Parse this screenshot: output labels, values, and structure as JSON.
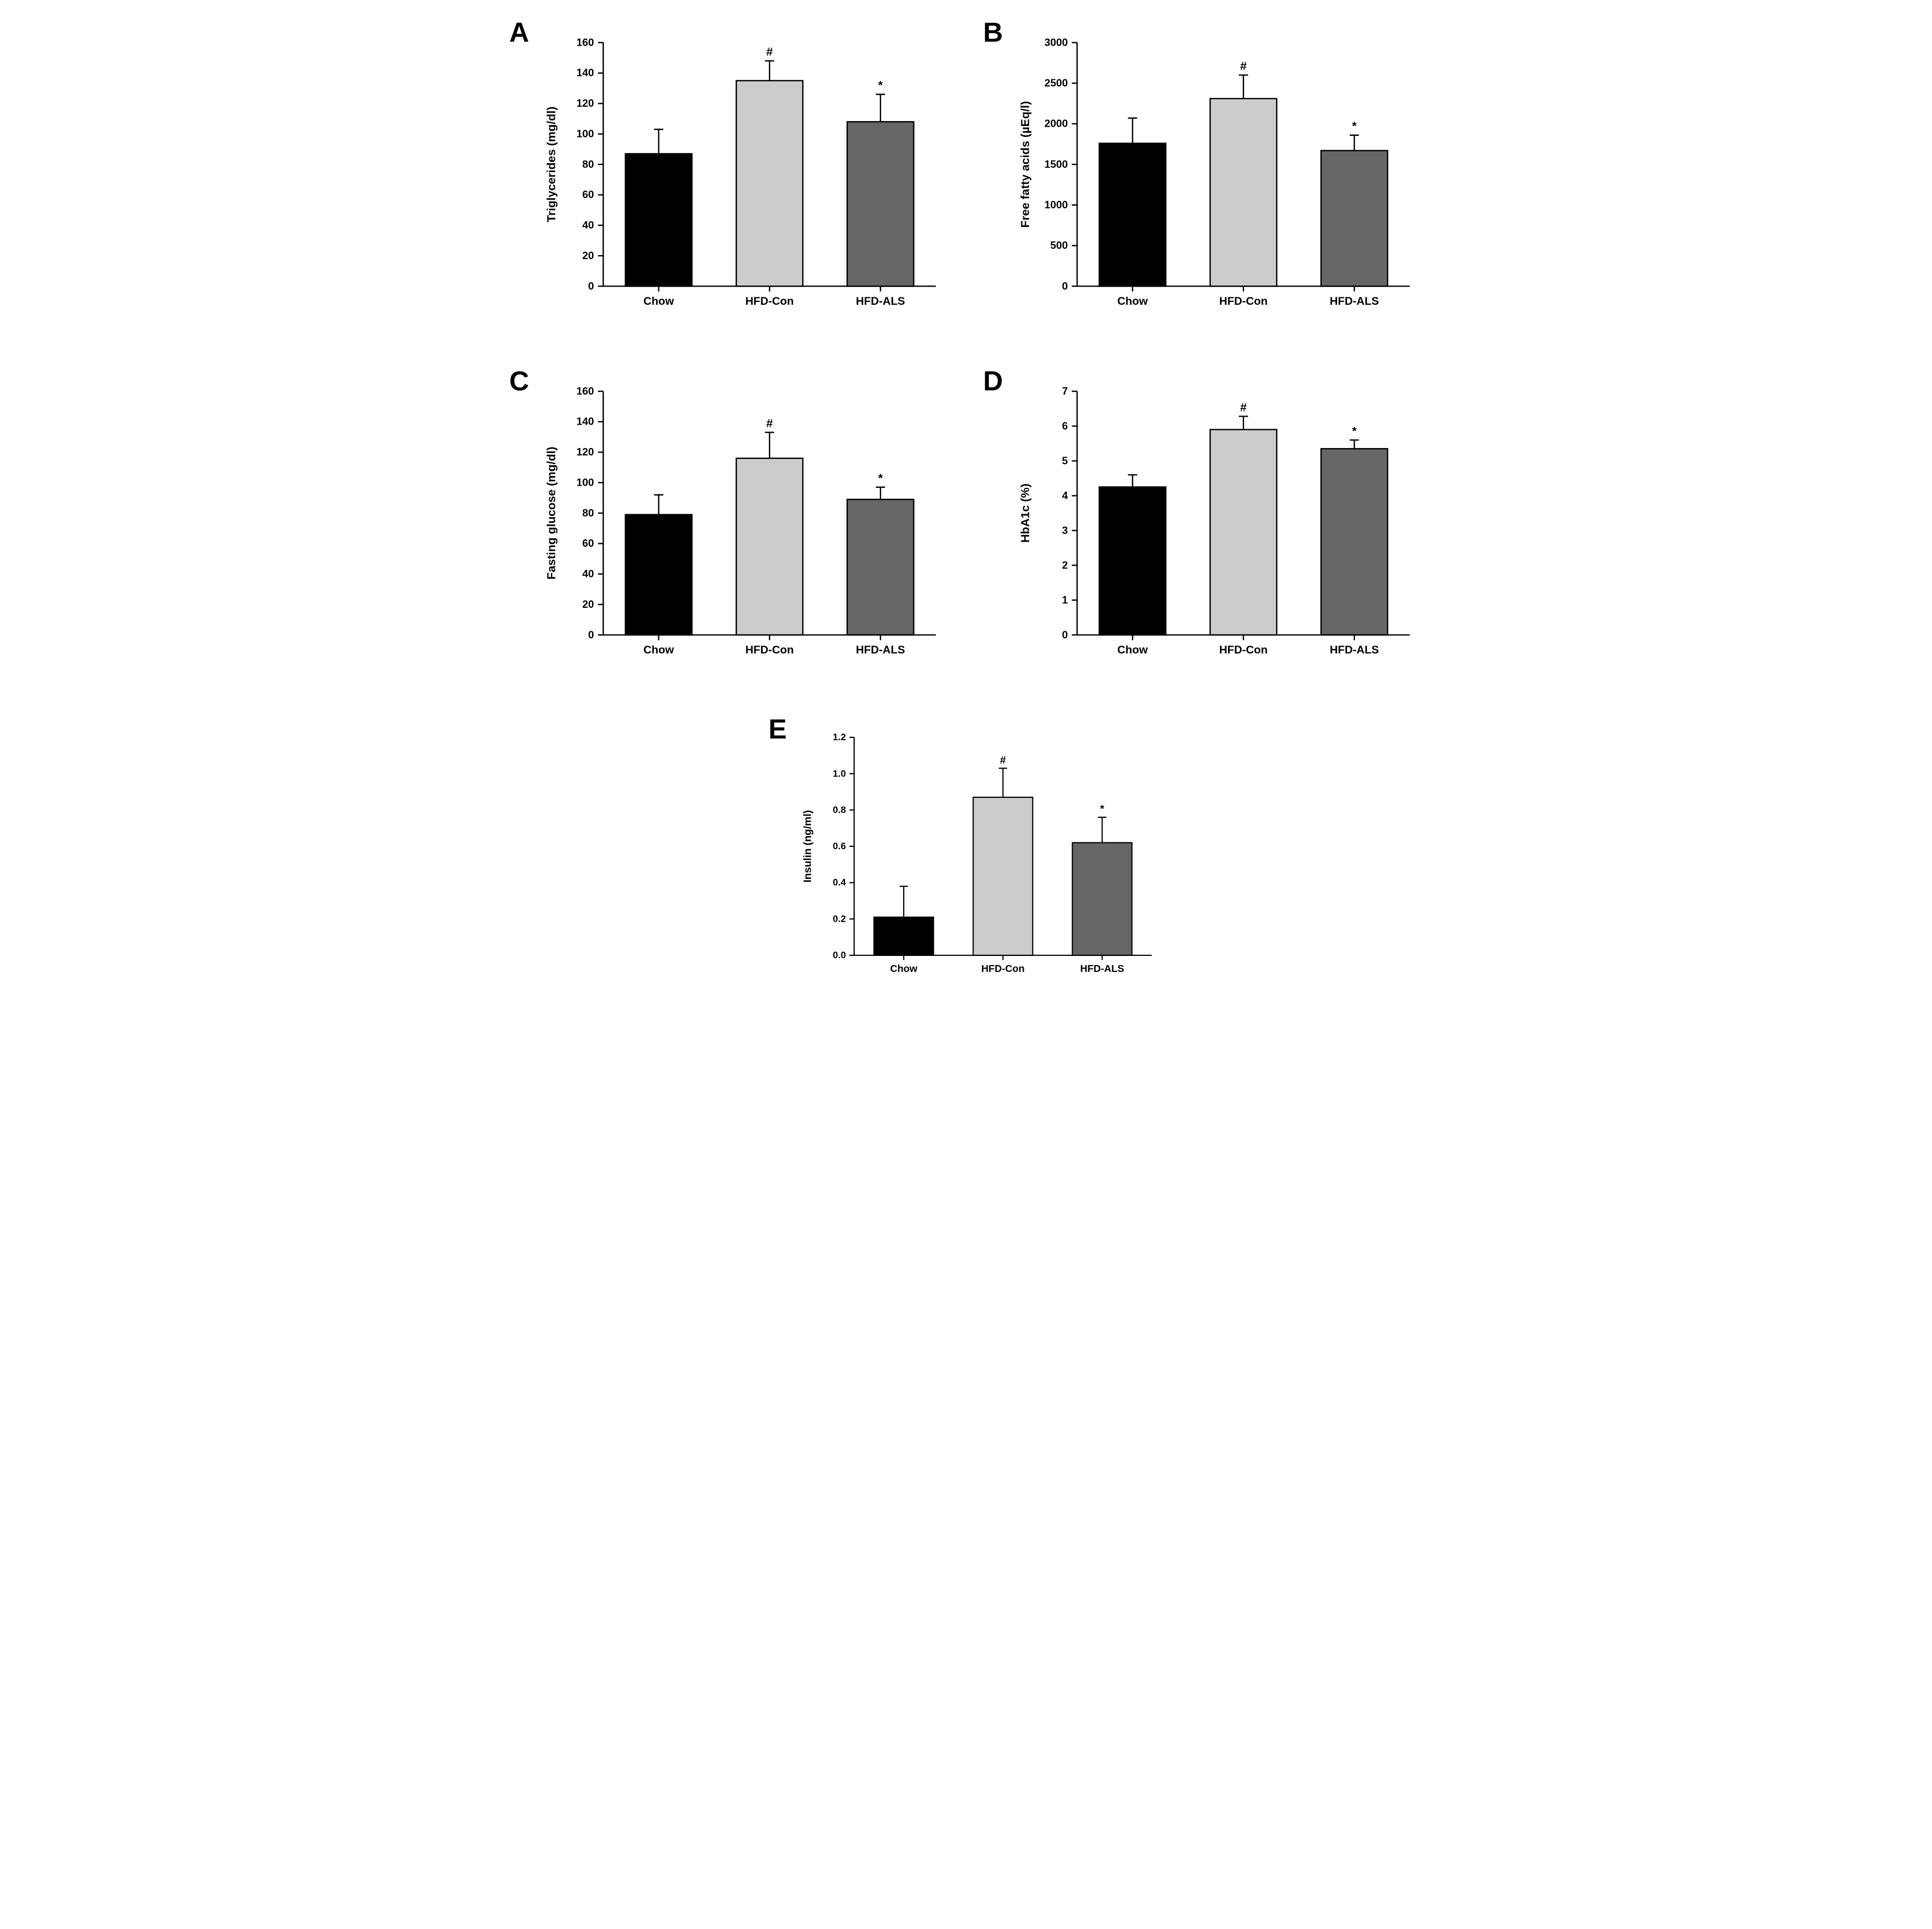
{
  "panels": {
    "A": {
      "label": "A",
      "type": "bar",
      "ylabel": "Triglycerides (mg/dl)",
      "categories": [
        "Chow",
        "HFD-Con",
        "HFD-ALS"
      ],
      "values": [
        87,
        135,
        108
      ],
      "errors": [
        16,
        13,
        18
      ],
      "sig_marks": [
        "",
        "#",
        "*"
      ],
      "bar_colors": [
        "#000000",
        "#cccccc",
        "#666666"
      ],
      "ylim": [
        0,
        160
      ],
      "ytick_step": 20
    },
    "B": {
      "label": "B",
      "type": "bar",
      "ylabel": "Free fatty acids (µEq/l)",
      "categories": [
        "Chow",
        "HFD-Con",
        "HFD-ALS"
      ],
      "values": [
        1760,
        2310,
        1670
      ],
      "errors": [
        310,
        290,
        190
      ],
      "sig_marks": [
        "",
        "#",
        "*"
      ],
      "bar_colors": [
        "#000000",
        "#cccccc",
        "#666666"
      ],
      "ylim": [
        0,
        3000
      ],
      "ytick_step": 500
    },
    "C": {
      "label": "C",
      "type": "bar",
      "ylabel": "Fasting glucose (mg/dl)",
      "categories": [
        "Chow",
        "HFD-Con",
        "HFD-ALS"
      ],
      "values": [
        79,
        116,
        89
      ],
      "errors": [
        13,
        17,
        8
      ],
      "sig_marks": [
        "",
        "#",
        "*"
      ],
      "bar_colors": [
        "#000000",
        "#cccccc",
        "#666666"
      ],
      "ylim": [
        0,
        160
      ],
      "ytick_step": 20
    },
    "D": {
      "label": "D",
      "type": "bar",
      "ylabel": "HbA1c (%)",
      "categories": [
        "Chow",
        "HFD-Con",
        "HFD-ALS"
      ],
      "values": [
        4.25,
        5.9,
        5.35
      ],
      "errors": [
        0.35,
        0.38,
        0.25
      ],
      "sig_marks": [
        "",
        "#",
        "*"
      ],
      "bar_colors": [
        "#000000",
        "#cccccc",
        "#666666"
      ],
      "ylim": [
        0,
        7
      ],
      "ytick_step": 1
    },
    "E": {
      "label": "E",
      "type": "bar",
      "ylabel": "Insulin (ng/ml)",
      "categories": [
        "Chow",
        "HFD-Con",
        "HFD-ALS"
      ],
      "values": [
        0.21,
        0.87,
        0.62
      ],
      "errors": [
        0.17,
        0.16,
        0.14
      ],
      "sig_marks": [
        "",
        "#",
        "*"
      ],
      "bar_colors": [
        "#000000",
        "#cccccc",
        "#666666"
      ],
      "ylim": [
        0,
        1.2
      ],
      "ytick_step": 0.2
    }
  },
  "style": {
    "bar_width": 0.6,
    "grid_color": "#ffffff",
    "background_color": "#ffffff",
    "axis_color": "#000000",
    "error_cap_width": 14,
    "tick_fontsize": 16,
    "label_fontsize": 18,
    "panel_label_fontsize": 48,
    "cat_fontsize": 17
  }
}
